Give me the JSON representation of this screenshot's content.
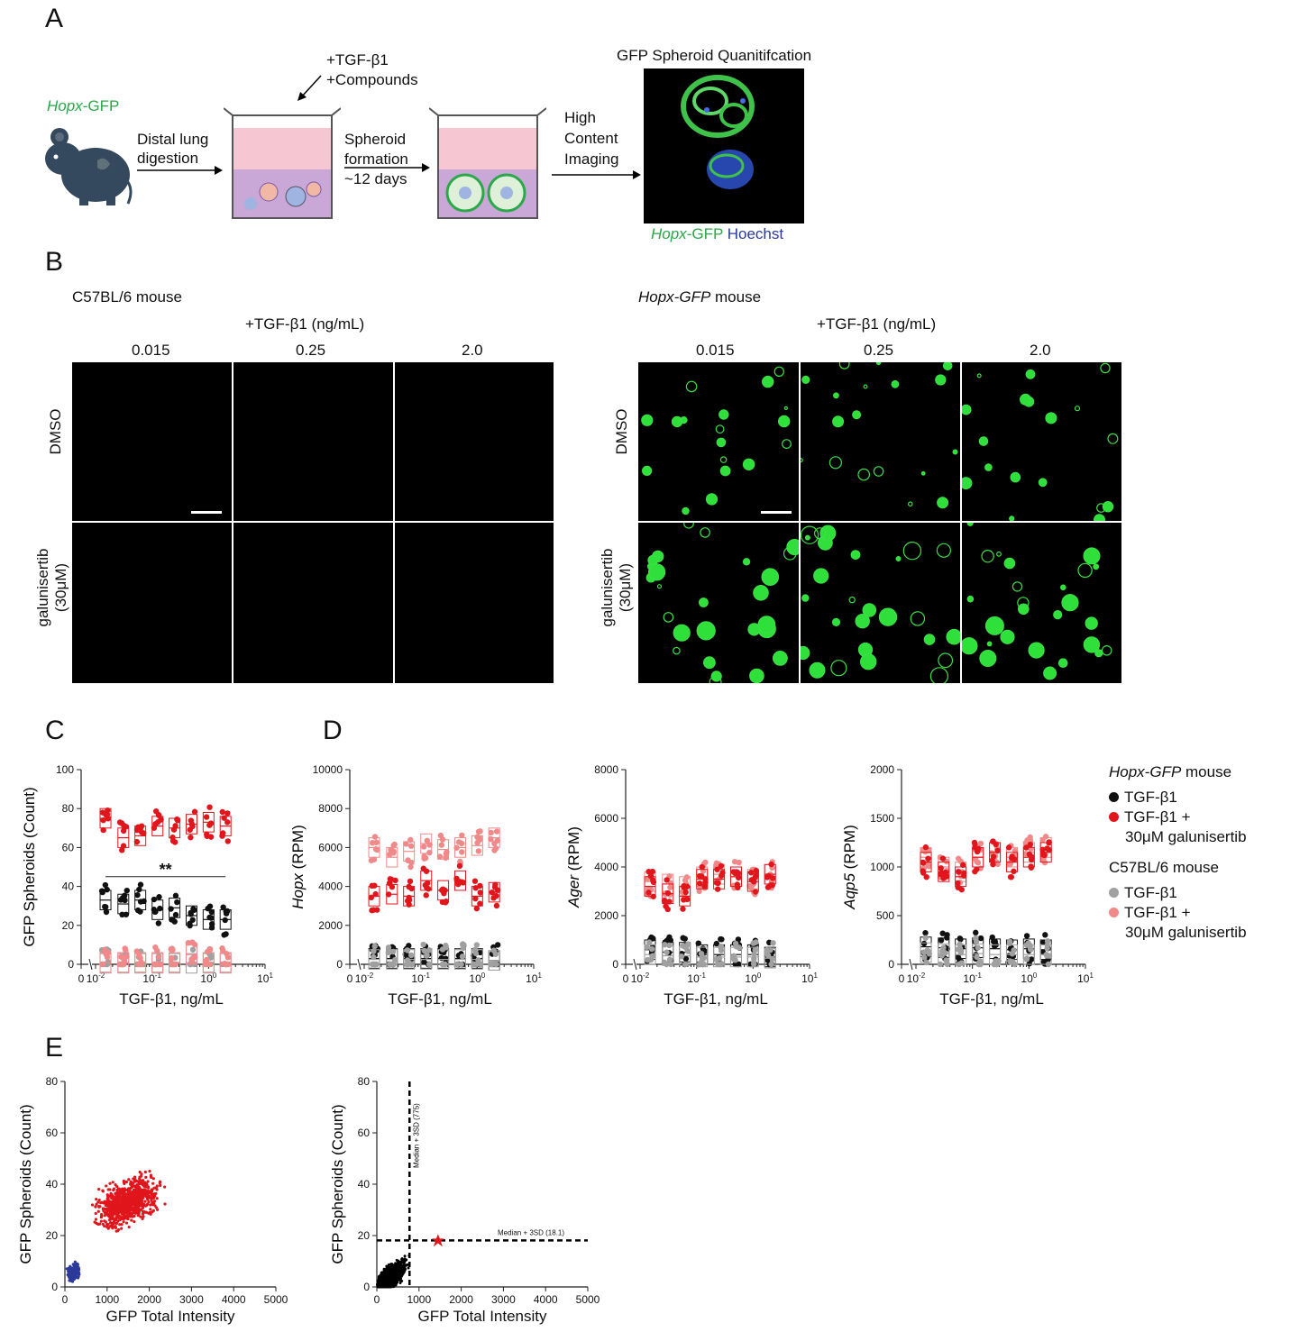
{
  "panels": {
    "a": "A",
    "b": "B",
    "c": "C",
    "d": "D",
    "e": "E"
  },
  "a": {
    "mouse_label_italic": "Hopx",
    "mouse_label_rest": "-GFP",
    "treat_line1": "+TGF-β1",
    "treat_line2": "+Compounds",
    "step1_l1": "Distal lung",
    "step1_l2": "digestion",
    "step2_l1": "Spheroid",
    "step2_l2": "formation",
    "step2_l3": "~12 days",
    "step3_l1": "High",
    "step3_l2": "Content",
    "step3_l3": "Imaging",
    "quant_title": "GFP Spheroid Quanitifcation",
    "legend_italic": "Hopx",
    "legend_gfp": "-GFP",
    "legend_hoechst": "Hoechst"
  },
  "b": {
    "left_title": "C57BL/6 mouse",
    "right_title_italic": "Hopx-GFP",
    "right_title_rest": " mouse",
    "treatment": "+TGF-β1 (ng/mL)",
    "concs": [
      "0.015",
      "0.25",
      "2.0"
    ],
    "row1": "DMSO",
    "row2_l1": "galunisertib",
    "row2_l2": "(30μM)"
  },
  "legend": {
    "group1_italic": "Hopx-GFP",
    "group1_rest": " mouse",
    "g1_a": "TGF-β1",
    "g1_b1": "TGF-β1 +",
    "g1_b2": "30μM galunisertib",
    "group2": "C57BL/6 mouse",
    "g2_a": "TGF-β1",
    "g2_b1": "TGF-β1 +",
    "g2_b2": "30μM galunisertib",
    "colors": {
      "hopx_tgf": "#111111",
      "hopx_galu": "#e0161c",
      "c57_tgf": "#a0a0a0",
      "c57_galu": "#f08a8a"
    }
  },
  "chart_data": [
    {
      "id": "C",
      "type": "scatter",
      "ylabel": "GFP Spheroids (Count)",
      "xlabel": "TGF-β1, ng/mL",
      "ylim": [
        0,
        100
      ],
      "yticks": [
        "0",
        "20",
        "40",
        "60",
        "80",
        "100"
      ],
      "xticks": [
        "0",
        "10-2",
        "10-1",
        "100",
        "101"
      ],
      "x": [
        0.015,
        0.031,
        0.062,
        0.125,
        0.25,
        0.5,
        1.0,
        2.0
      ],
      "annotation": "**",
      "series": [
        {
          "key": "hopx_galu",
          "values": [
            75,
            65,
            66,
            71,
            70,
            72,
            73,
            71
          ]
        },
        {
          "key": "hopx_tgf",
          "values": [
            33,
            31,
            33,
            28,
            29,
            25,
            23,
            23
          ]
        },
        {
          "key": "c57_tgf",
          "values": [
            0.5,
            0.5,
            0.5,
            0.5,
            0.5,
            0.5,
            0.5,
            0.5
          ]
        },
        {
          "key": "c57_galu",
          "values": [
            1,
            1,
            1,
            1,
            1,
            5,
            1,
            1
          ]
        }
      ]
    },
    {
      "id": "D1",
      "type": "scatter",
      "ylabel_italic": "Hopx",
      "ylabel_rest": " (RPM)",
      "xlabel": "TGF-β1, ng/mL",
      "ylim": [
        0,
        10000
      ],
      "yticks": [
        "0",
        "2000",
        "4000",
        "6000",
        "8000",
        "10000"
      ],
      "xticks": [
        "0",
        "10-2",
        "10-1",
        "100",
        "101"
      ],
      "x": [
        0.015,
        0.031,
        0.062,
        0.125,
        0.25,
        0.5,
        1.0,
        2.0
      ],
      "series": [
        {
          "key": "c57_galu",
          "values": [
            6000,
            5500,
            5800,
            6200,
            5900,
            6000,
            6100,
            6500
          ]
        },
        {
          "key": "hopx_galu",
          "values": [
            3500,
            3600,
            3500,
            4300,
            3800,
            4300,
            3500,
            3700
          ]
        },
        {
          "key": "hopx_tgf",
          "values": [
            300,
            300,
            300,
            300,
            300,
            300,
            300,
            200
          ]
        },
        {
          "key": "c57_tgf",
          "values": [
            250,
            250,
            250,
            250,
            250,
            250,
            250,
            200
          ]
        }
      ]
    },
    {
      "id": "D2",
      "type": "scatter",
      "ylabel_italic": "Ager",
      "ylabel_rest": " (RPM)",
      "xlabel": "TGF-β1, ng/mL",
      "ylim": [
        0,
        8000
      ],
      "yticks": [
        "0",
        "2000",
        "4000",
        "6000",
        "8000"
      ],
      "xticks": [
        "0",
        "10-2",
        "10-1",
        "100",
        "101"
      ],
      "x": [
        0.015,
        0.031,
        0.062,
        0.125,
        0.25,
        0.5,
        1.0,
        2.0
      ],
      "series": [
        {
          "key": "c57_galu",
          "values": [
            3400,
            3300,
            3200,
            3600,
            3700,
            3600,
            3500,
            3700
          ]
        },
        {
          "key": "hopx_galu",
          "values": [
            3200,
            2900,
            2800,
            3500,
            3500,
            3600,
            3400,
            3700
          ]
        },
        {
          "key": "hopx_tgf",
          "values": [
            600,
            500,
            500,
            400,
            400,
            400,
            400,
            300
          ]
        },
        {
          "key": "c57_tgf",
          "values": [
            400,
            350,
            350,
            300,
            300,
            300,
            300,
            250
          ]
        }
      ]
    },
    {
      "id": "D3",
      "type": "scatter",
      "ylabel_italic": "Aqp5",
      "ylabel_rest": " (RPM)",
      "xlabel": "TGF-β1, ng/mL",
      "ylim": [
        0,
        2000
      ],
      "yticks": [
        "0",
        "500",
        "1000",
        "1500",
        "2000"
      ],
      "xticks": [
        "0",
        "10-2",
        "10-1",
        "100",
        "101"
      ],
      "x": [
        0.015,
        0.031,
        0.062,
        0.125,
        0.25,
        0.5,
        1.0,
        2.0
      ],
      "series": [
        {
          "key": "c57_galu",
          "values": [
            1100,
            1000,
            950,
            1100,
            1150,
            1100,
            1150,
            1200
          ]
        },
        {
          "key": "hopx_galu",
          "values": [
            1050,
            950,
            900,
            1100,
            1150,
            1050,
            1100,
            1150
          ]
        },
        {
          "key": "hopx_tgf",
          "values": [
            180,
            170,
            160,
            170,
            160,
            150,
            160,
            150
          ]
        },
        {
          "key": "c57_tgf",
          "values": [
            120,
            110,
            100,
            110,
            100,
            100,
            100,
            100
          ]
        }
      ]
    },
    {
      "id": "E1",
      "type": "scatter",
      "ylabel": "GFP Spheroids (Count)",
      "xlabel": "GFP Total Intensity",
      "xlim": [
        0,
        5000
      ],
      "ylim": [
        0,
        80
      ],
      "xticks": [
        "0",
        "1000",
        "2000",
        "3000",
        "4000",
        "5000"
      ],
      "yticks": [
        "0",
        "20",
        "40",
        "60",
        "80"
      ],
      "series": [
        {
          "name": "",
          "color": "#e0161c",
          "center": [
            1500,
            33
          ],
          "spread": [
            600,
            7
          ]
        },
        {
          "name": "",
          "color": "#2b3a9a",
          "center": [
            200,
            6
          ],
          "spread": [
            120,
            3
          ]
        }
      ]
    },
    {
      "id": "E2",
      "type": "scatter",
      "ylabel": "GFP Spheroids (Count)",
      "xlabel": "GFP Total Intensity",
      "xlim": [
        0,
        5000
      ],
      "ylim": [
        0,
        80
      ],
      "xticks": [
        "0",
        "1000",
        "2000",
        "3000",
        "4000",
        "5000"
      ],
      "yticks": [
        "0",
        "20",
        "40",
        "60",
        "80"
      ],
      "vline_label": "Median + 3SD (775)",
      "vline_x": 775,
      "hline_label": "Median + 3SD (18.1)",
      "hline_y": 18.1,
      "highlight": [
        1450,
        18.1
      ]
    }
  ]
}
